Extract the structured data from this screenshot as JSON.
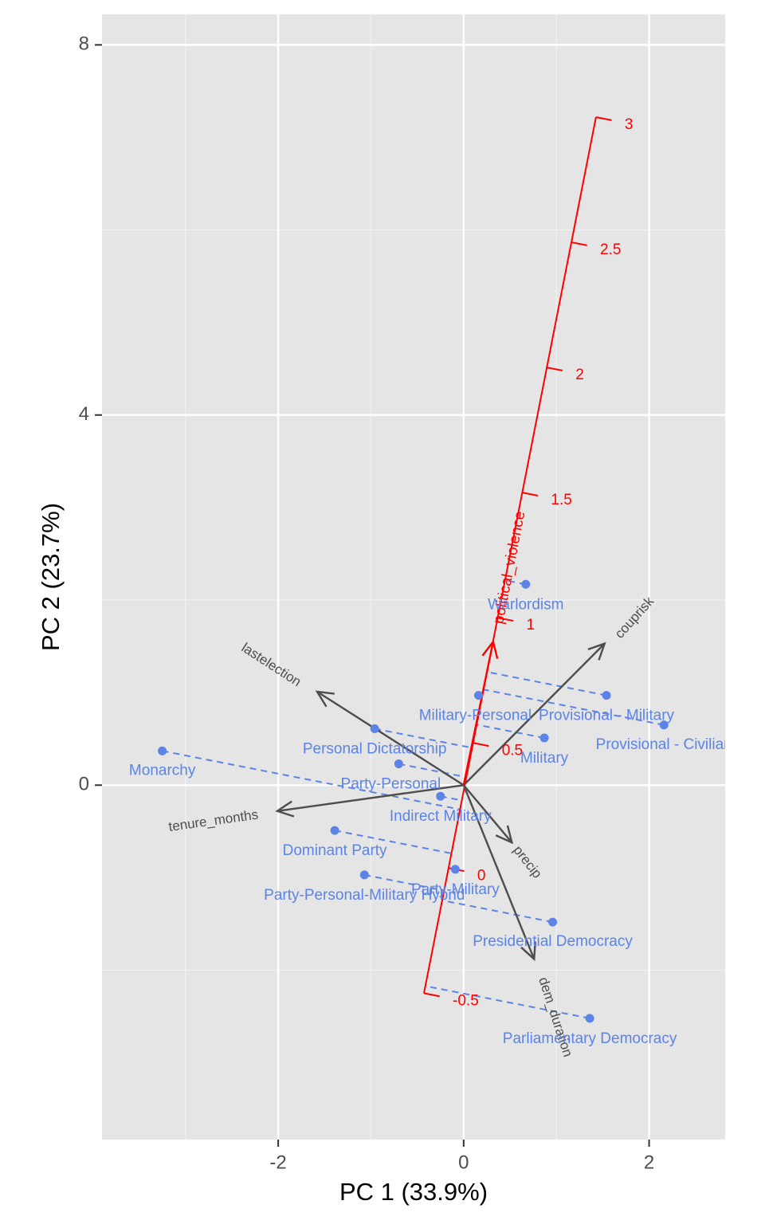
{
  "chart_data": {
    "type": "biplot",
    "x_label": "PC 1 (33.9%)",
    "y_label": "PC 2 (23.7%)",
    "xlim": [
      -3.9,
      2.82
    ],
    "ylim": [
      -3.83,
      8.33
    ],
    "xticks": [
      -2,
      0,
      2
    ],
    "yticks": [
      0,
      4,
      8
    ],
    "xminor": [
      -3,
      -1,
      1
    ],
    "yminor": [
      -2,
      2,
      6
    ],
    "grid": true,
    "points": {
      "color": "#5b84e6",
      "categories": [
        "Monarchy",
        "Personal Dictatorship",
        "Party-Personal",
        "Indirect Military",
        "Dominant Party",
        "Party-Personal-Military Hybrid",
        "Party-Military",
        "Presidential Democracy",
        "Parliamentary Democracy",
        "Military",
        "Military-Personal",
        "Provisional - Military",
        "Provisional - Civilian",
        "Warlordism"
      ],
      "x": [
        -3.25,
        -0.96,
        -0.7,
        -0.25,
        -1.39,
        -1.07,
        -0.09,
        0.96,
        1.36,
        0.87,
        0.16,
        1.54,
        2.16,
        0.67
      ],
      "y": [
        0.37,
        0.61,
        0.23,
        -0.12,
        -0.49,
        -0.97,
        -0.91,
        -1.48,
        -2.52,
        0.51,
        0.97,
        0.97,
        0.65,
        2.17
      ]
    },
    "loadings": {
      "color": "#4d4d4d",
      "names": [
        "lastelection",
        "tenure_months",
        "couprisk",
        "precip",
        "dem_duration"
      ],
      "x": [
        -1.58,
        -2.01,
        1.52,
        0.52,
        0.76
      ],
      "y": [
        1.01,
        -0.28,
        1.53,
        -0.62,
        -1.88
      ]
    },
    "calibrated_axis": {
      "name": "political_violence",
      "color": "#ff0000",
      "origin": [
        -0.163,
        -0.896
      ],
      "direction": [
        0.53,
        2.705
      ],
      "arrow": [
        0.318,
        1.55
      ],
      "ticks": [
        -0.5,
        0,
        0.5,
        1,
        1.5,
        2,
        2.5,
        3
      ]
    }
  }
}
